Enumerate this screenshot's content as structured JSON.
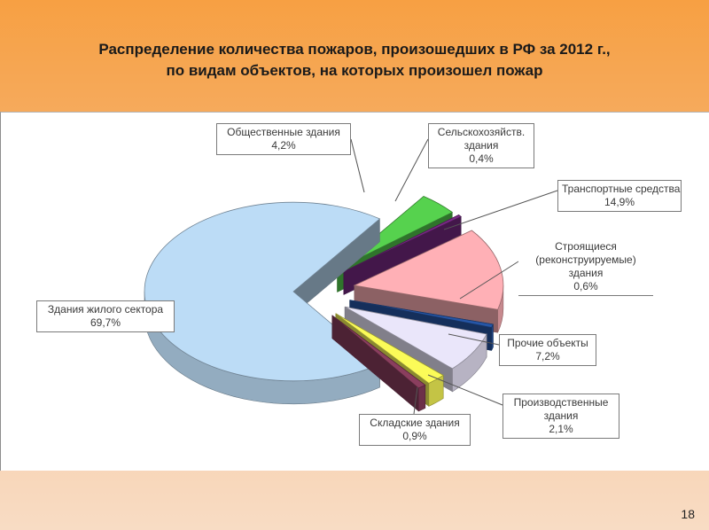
{
  "slide": {
    "title_line1": "Распределение количества пожаров, произошедших в РФ за 2012 г.,",
    "title_line2": "по видам объектов, на которых произошел пожар",
    "page_number": "18"
  },
  "chart_data": {
    "type": "pie",
    "title": "Распределение количества пожаров, произошедших в РФ за 2012 г., по видам объектов, на которых произошел пожар",
    "value_unit": "%",
    "slices": [
      {
        "key": "residential",
        "label": "Здания жилого сектора",
        "display": "69,7%",
        "value": 69.7,
        "color": "#bcdcf6"
      },
      {
        "key": "public",
        "label": "Общественные здания",
        "display": "4,2%",
        "value": 4.2,
        "color": "#56d24e"
      },
      {
        "key": "agricultural",
        "label": "Сельскохозяйств. здания",
        "display": "0,4%",
        "value": 0.4,
        "color": "#7a2a86"
      },
      {
        "key": "transport",
        "label": "Транспортные средства",
        "display": "14,9%",
        "value": 14.9,
        "color": "#ffb0b6"
      },
      {
        "key": "under_construction",
        "label": "Строящиеся (реконструируемые) здания",
        "display": "0,6%",
        "value": 0.6,
        "color": "#2656a6"
      },
      {
        "key": "other",
        "label": "Прочие объекты",
        "display": "7,2%",
        "value": 7.2,
        "color": "#eae6fa"
      },
      {
        "key": "industrial",
        "label": "Производственные здания",
        "display": "2,1%",
        "value": 2.1,
        "color": "#fbfb58"
      },
      {
        "key": "warehouse",
        "label": "Складские здания",
        "display": "0,9%",
        "value": 0.9,
        "color": "#8a3e5e"
      }
    ]
  }
}
